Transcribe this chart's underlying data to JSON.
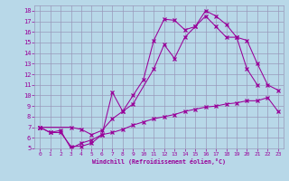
{
  "xlabel": "Windchill (Refroidissement éolien,°C)",
  "bg_color": "#b8d8e8",
  "line_color": "#990099",
  "grid_color": "#9999bb",
  "xlim": [
    -0.5,
    23.5
  ],
  "ylim": [
    5,
    18.5
  ],
  "xticks": [
    0,
    1,
    2,
    3,
    4,
    5,
    6,
    7,
    8,
    9,
    10,
    11,
    12,
    13,
    14,
    15,
    16,
    17,
    18,
    19,
    20,
    21,
    22,
    23
  ],
  "yticks": [
    5,
    6,
    7,
    8,
    9,
    10,
    11,
    12,
    13,
    14,
    15,
    16,
    17,
    18
  ],
  "line1_x": [
    0,
    1,
    2,
    3,
    4,
    5,
    6,
    7,
    8,
    9,
    10,
    11,
    12,
    13,
    14,
    15,
    16,
    17,
    18,
    19,
    20,
    21,
    22,
    23
  ],
  "line1_y": [
    7.0,
    6.5,
    6.5,
    5.2,
    5.2,
    5.5,
    6.3,
    6.5,
    6.8,
    7.2,
    7.5,
    7.8,
    8.0,
    8.2,
    8.5,
    8.7,
    8.9,
    9.0,
    9.2,
    9.3,
    9.5,
    9.5,
    9.8,
    8.5
  ],
  "line2_x": [
    0,
    1,
    2,
    3,
    4,
    5,
    6,
    7,
    8,
    9,
    10,
    11,
    12,
    13,
    14,
    15,
    16,
    17,
    18,
    19,
    20,
    21
  ],
  "line2_y": [
    7.0,
    6.5,
    6.7,
    5.0,
    5.5,
    5.8,
    6.3,
    10.3,
    8.5,
    10.0,
    11.5,
    15.2,
    17.2,
    17.1,
    16.2,
    16.5,
    18.0,
    17.5,
    16.7,
    15.5,
    12.5,
    11.0
  ],
  "line3_x": [
    0,
    3,
    4,
    5,
    6,
    7,
    8,
    9,
    11,
    12,
    13,
    14,
    15,
    16,
    17,
    18,
    19,
    20,
    21,
    22,
    23
  ],
  "line3_y": [
    7.0,
    7.0,
    6.8,
    6.3,
    6.7,
    7.8,
    8.5,
    9.2,
    12.5,
    14.8,
    13.5,
    15.5,
    16.5,
    17.5,
    16.5,
    15.5,
    15.5,
    15.2,
    13.0,
    11.0,
    10.5
  ]
}
